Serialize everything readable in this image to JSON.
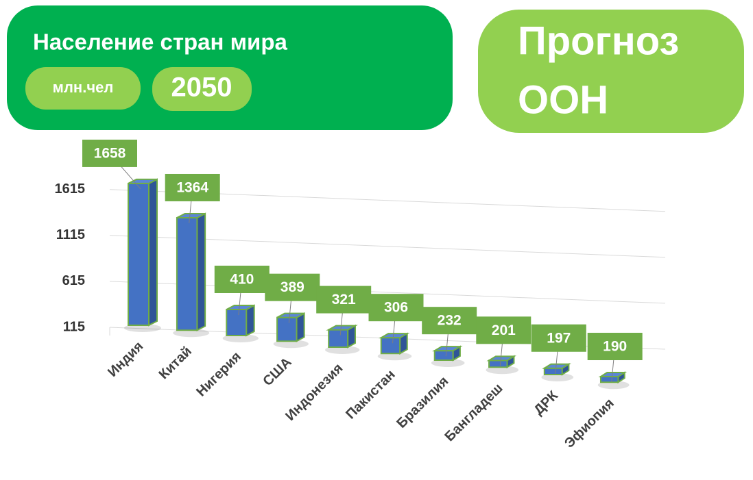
{
  "header": {
    "title": "Население стран мира",
    "unit_label": "млн.чел",
    "year_label": "2050",
    "badge": [
      "Прогноз",
      "ООН"
    ]
  },
  "chart_data": {
    "type": "bar3d",
    "categories": [
      "Индия",
      "Китай",
      "Нигерия",
      "США",
      "Индонезия",
      "Пакистан",
      "Бразилия",
      "Бангладеш",
      "ДРК",
      "Эфиопия"
    ],
    "values": [
      1658,
      1364,
      410,
      389,
      321,
      306,
      232,
      201,
      197,
      190
    ],
    "color": "#4472c4",
    "edge_color": "#70ad47",
    "label_color": "#70ad47",
    "ylim": [
      115,
      1700
    ],
    "yticks": [
      115,
      615,
      1115,
      1615
    ],
    "grid": true
  }
}
